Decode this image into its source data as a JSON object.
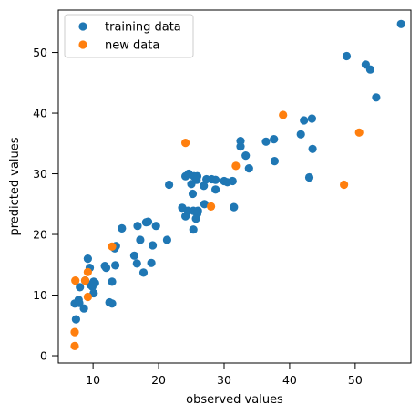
{
  "chart_data": {
    "type": "scatter",
    "xlabel": "observed values",
    "ylabel": "predicted values",
    "xlim": [
      4.7,
      58.5
    ],
    "ylim": [
      -1.2,
      57.0
    ],
    "xticks": [
      10,
      20,
      30,
      40,
      50
    ],
    "yticks": [
      0,
      10,
      20,
      30,
      40,
      50
    ],
    "grid": false,
    "legend_position": "top-left",
    "series": [
      {
        "name": "training data",
        "color": "#1f77b4",
        "points": [
          [
            57.0,
            54.7
          ],
          [
            48.7,
            49.4
          ],
          [
            51.6,
            48.0
          ],
          [
            52.3,
            47.2
          ],
          [
            53.2,
            42.6
          ],
          [
            43.4,
            39.1
          ],
          [
            42.2,
            38.8
          ],
          [
            41.7,
            36.5
          ],
          [
            37.6,
            35.7
          ],
          [
            36.4,
            35.3
          ],
          [
            32.5,
            35.4
          ],
          [
            32.5,
            34.5
          ],
          [
            33.3,
            33.0
          ],
          [
            43.5,
            34.1
          ],
          [
            37.7,
            32.1
          ],
          [
            33.8,
            30.9
          ],
          [
            43.0,
            29.4
          ],
          [
            24.1,
            29.6
          ],
          [
            24.6,
            30.0
          ],
          [
            25.4,
            29.6
          ],
          [
            25.9,
            29.6
          ],
          [
            25.8,
            29.0
          ],
          [
            27.3,
            29.1
          ],
          [
            28.1,
            29.1
          ],
          [
            28.7,
            29.0
          ],
          [
            30.0,
            28.8
          ],
          [
            30.5,
            28.6
          ],
          [
            31.3,
            28.8
          ],
          [
            25.0,
            28.3
          ],
          [
            26.9,
            28.0
          ],
          [
            28.7,
            27.4
          ],
          [
            25.2,
            26.7
          ],
          [
            21.6,
            28.2
          ],
          [
            27.0,
            25.0
          ],
          [
            23.6,
            24.4
          ],
          [
            25.3,
            23.9
          ],
          [
            26.0,
            23.9
          ],
          [
            24.5,
            23.9
          ],
          [
            24.1,
            23.0
          ],
          [
            25.9,
            23.4
          ],
          [
            25.7,
            22.6
          ],
          [
            25.3,
            20.8
          ],
          [
            31.5,
            24.5
          ],
          [
            14.4,
            21.0
          ],
          [
            16.8,
            21.4
          ],
          [
            18.1,
            22.0
          ],
          [
            18.4,
            22.1
          ],
          [
            19.6,
            21.4
          ],
          [
            17.2,
            19.1
          ],
          [
            21.3,
            19.1
          ],
          [
            19.1,
            18.2
          ],
          [
            13.5,
            18.1
          ],
          [
            13.3,
            17.7
          ],
          [
            16.3,
            16.5
          ],
          [
            16.7,
            15.2
          ],
          [
            18.9,
            15.3
          ],
          [
            17.7,
            13.7
          ],
          [
            11.8,
            14.8
          ],
          [
            12.0,
            14.5
          ],
          [
            13.4,
            14.9
          ],
          [
            9.2,
            16.0
          ],
          [
            9.5,
            14.5
          ],
          [
            8.8,
            12.4
          ],
          [
            8.0,
            11.3
          ],
          [
            9.6,
            11.7
          ],
          [
            10.1,
            12.2
          ],
          [
            10.3,
            12.0
          ],
          [
            9.9,
            11.4
          ],
          [
            10.1,
            10.3
          ],
          [
            7.8,
            9.2
          ],
          [
            7.2,
            8.6
          ],
          [
            7.9,
            8.7
          ],
          [
            8.6,
            7.8
          ],
          [
            12.9,
            12.2
          ],
          [
            12.5,
            8.8
          ],
          [
            12.9,
            8.6
          ],
          [
            7.4,
            6.0
          ]
        ]
      },
      {
        "name": "new data",
        "color": "#ff7f0e",
        "points": [
          [
            39.0,
            39.7
          ],
          [
            50.6,
            36.8
          ],
          [
            24.1,
            35.1
          ],
          [
            31.8,
            31.3
          ],
          [
            48.3,
            28.2
          ],
          [
            28.0,
            24.6
          ],
          [
            12.9,
            18.0
          ],
          [
            9.2,
            13.8
          ],
          [
            8.8,
            12.4
          ],
          [
            7.3,
            12.4
          ],
          [
            9.2,
            9.7
          ],
          [
            7.2,
            3.9
          ],
          [
            7.2,
            1.6
          ]
        ]
      }
    ]
  }
}
